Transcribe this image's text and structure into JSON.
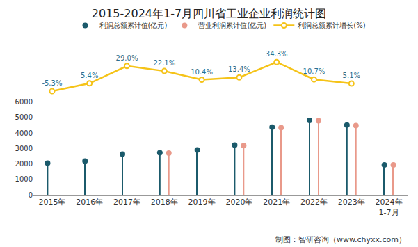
{
  "chart_data": {
    "type": "bar",
    "title": "2015-2024年1-7月四川省工业企业利润统计图",
    "categories": [
      "2015年",
      "2016年",
      "2017年",
      "2018年",
      "2019年",
      "2020年",
      "2021年",
      "2022年",
      "2023年",
      "2024年\n1-7月"
    ],
    "series": [
      {
        "name": "利润总额累计值(亿元)",
        "type": "bar",
        "marker": "circle",
        "color": "#1b5a6b",
        "values": [
          2050,
          2180,
          2630,
          2720,
          2900,
          3220,
          4380,
          4820,
          4510,
          1930
        ]
      },
      {
        "name": "营业利润累计值(亿元)",
        "type": "bar",
        "marker": "circle",
        "color": "#e9998a",
        "values": [
          null,
          null,
          null,
          2700,
          null,
          3180,
          4340,
          4790,
          4480,
          1930
        ]
      },
      {
        "name": "利润总额累计增长(%)",
        "type": "line",
        "axis": "y2",
        "marker": "circle",
        "color": "#f5c318",
        "data_labels": true,
        "values": [
          -5.3,
          5.4,
          29.0,
          22.1,
          10.4,
          13.4,
          34.3,
          10.7,
          5.1,
          null
        ],
        "value_labels": [
          "-5.3%",
          "5.4%",
          "29.0%",
          "22.1%",
          "10.4%",
          "13.4%",
          "34.3%",
          "10.7%",
          "5.1%",
          null
        ]
      }
    ],
    "ylim": [
      0,
      6000
    ],
    "yticks": [
      0,
      1000,
      2000,
      3000,
      4000,
      5000,
      6000
    ],
    "y2lim": [
      -14,
      43
    ],
    "grid": false,
    "legend": "top",
    "annotations": [
      "制图：智研咨询（www.chyxx.com）"
    ]
  }
}
